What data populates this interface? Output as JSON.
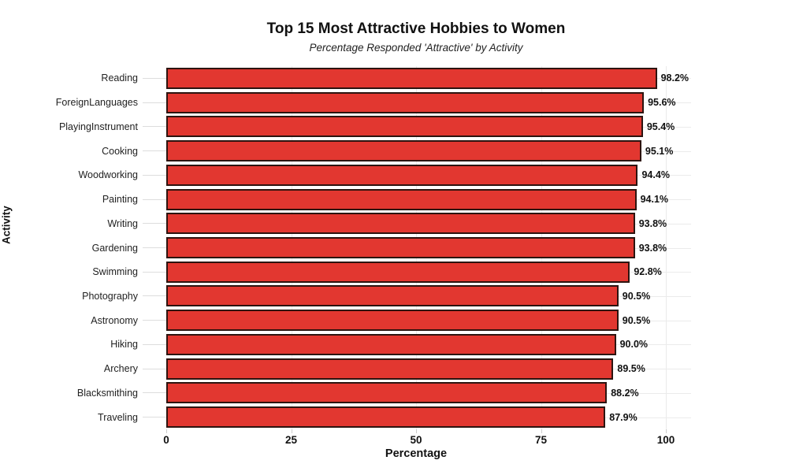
{
  "chart_data": {
    "type": "bar",
    "orientation": "horizontal",
    "title": "Top 15 Most Attractive Hobbies to Women",
    "subtitle": "Percentage Responded 'Attractive' by Activity",
    "xlabel": "Percentage",
    "ylabel": "Activity",
    "categories": [
      "Reading",
      "ForeignLanguages",
      "PlayingInstrument",
      "Cooking",
      "Woodworking",
      "Painting",
      "Writing",
      "Gardening",
      "Swimming",
      "Photography",
      "Astronomy",
      "Hiking",
      "Archery",
      "Blacksmithing",
      "Traveling"
    ],
    "values": [
      98.2,
      95.6,
      95.4,
      95.1,
      94.4,
      94.1,
      93.8,
      93.8,
      92.8,
      90.5,
      90.5,
      90.0,
      89.5,
      88.2,
      87.9
    ],
    "value_labels": [
      "98.2%",
      "95.6%",
      "95.4%",
      "95.1%",
      "94.4%",
      "94.1%",
      "93.8%",
      "93.8%",
      "92.8%",
      "90.5%",
      "90.5%",
      "90.0%",
      "89.5%",
      "88.2%",
      "87.9%"
    ],
    "xticks": [
      0,
      25,
      50,
      75,
      100
    ],
    "xlim": [
      0,
      105
    ],
    "grid": true,
    "legend": "none",
    "bar_color": "#e23730",
    "bar_edge_color": "#2d1410",
    "gridline_color": "#ebebeb",
    "tick_mark_color": "#dddddd"
  }
}
